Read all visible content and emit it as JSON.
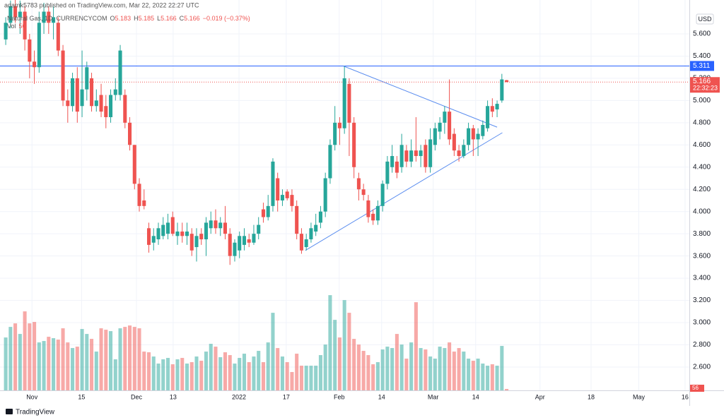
{
  "publisher": "adamk5783 published on TradingView.com, Mar 22, 2022 22:27 UTC",
  "brand": "TradingView",
  "chart_data": {
    "type": "candlestick",
    "currency": "USD",
    "legend": {
      "symbol": "Natural Gas, 1D, CURRENCYCOM",
      "labels": [
        "O",
        "H",
        "L",
        "C"
      ],
      "change": "−0.019 (−0.37%)",
      "volume_label": "Vol"
    },
    "countdown": "22:32:23",
    "up_color": "#26a69a",
    "down_color": "#ef5350",
    "grid": true,
    "xlim": [
      -1.2,
      143.3
    ],
    "xticks": [
      {
        "value": 5.5,
        "label": "Nov"
      },
      {
        "value": 15.9,
        "label": "15"
      },
      {
        "value": 27.4,
        "label": "Dec"
      },
      {
        "value": 35.1,
        "label": "13"
      },
      {
        "value": 48.9,
        "label": "2022"
      },
      {
        "value": 58.8,
        "label": "17"
      },
      {
        "value": 69.9,
        "label": "Feb"
      },
      {
        "value": 78.8,
        "label": "14"
      },
      {
        "value": 89.6,
        "label": "Mar"
      },
      {
        "value": 98.5,
        "label": "14"
      },
      {
        "value": 112,
        "label": "Apr"
      },
      {
        "value": 122.7,
        "label": "18"
      },
      {
        "value": 132.7,
        "label": "May"
      },
      {
        "value": 142.4,
        "label": "16"
      }
    ],
    "ylim": [
      2.39,
      5.905
    ],
    "yticks": [
      {
        "value": 2.6,
        "label": "2.600"
      },
      {
        "value": 2.8,
        "label": "2.800"
      },
      {
        "value": 3.0,
        "label": "3.000"
      },
      {
        "value": 3.2,
        "label": "3.200"
      },
      {
        "value": 3.4,
        "label": "3.400"
      },
      {
        "value": 3.6,
        "label": "3.600"
      },
      {
        "value": 3.8,
        "label": "3.800"
      },
      {
        "value": 4.0,
        "label": "4.000"
      },
      {
        "value": 4.2,
        "label": "4.200"
      },
      {
        "value": 4.4,
        "label": "4.400"
      },
      {
        "value": 4.6,
        "label": "4.600"
      },
      {
        "value": 4.8,
        "label": "4.800"
      },
      {
        "value": 5.0,
        "label": "5.000"
      },
      {
        "value": 5.2,
        "label": "5.200"
      },
      {
        "value": 5.4,
        "label": "5.400"
      },
      {
        "value": 5.6,
        "label": "5.600"
      }
    ],
    "y2lim": [
      0,
      15500
    ],
    "hline": {
      "value": 5.311,
      "color": "#2962ff"
    },
    "trendlines": [
      {
        "x": [
          70.8,
          103
        ],
        "y": [
          5.31,
          4.76
        ],
        "color": "#5b8def"
      },
      {
        "x": [
          62.8,
          104.1
        ],
        "y": [
          3.65,
          4.71
        ],
        "color": "#5b8def"
      }
    ],
    "open": [
      5.55,
      5.7,
      5.85,
      5.75,
      5.8,
      5.55,
      5.35,
      5.3,
      5.7,
      5.8,
      5.7,
      5.7,
      5.45,
      5.0,
      4.95,
      5.2,
      4.95,
      5.1,
      5.2,
      4.95,
      5.05,
      4.95,
      4.85,
      5.05,
      5.05,
      5.05,
      4.8,
      4.6,
      4.25,
      4.1,
      3.85,
      3.72,
      3.75,
      3.78,
      3.8,
      3.95,
      3.78,
      3.82,
      3.78,
      3.8,
      3.68,
      3.8,
      3.75,
      3.85,
      3.92,
      3.85,
      3.9,
      3.8,
      3.6,
      3.65,
      3.7,
      3.75,
      3.72,
      3.8,
      4.02,
      3.95,
      4.05,
      4.3,
      4.1,
      4.18,
      4.15,
      4.05,
      3.8,
      3.68,
      3.75,
      3.82,
      3.9,
      4.0,
      4.3,
      4.6,
      4.8,
      4.75,
      5.15,
      4.8,
      4.3,
      4.2,
      4.1,
      3.98,
      3.92,
      4.05,
      4.25,
      4.4,
      4.45,
      4.4,
      4.55,
      4.45,
      4.55,
      4.5,
      4.6,
      4.4,
      4.6,
      4.72,
      4.8,
      4.9,
      4.7,
      4.55,
      4.5,
      4.6,
      4.75,
      4.65,
      4.68,
      4.75,
      4.95,
      4.92,
      5.0,
      5.183
    ],
    "high": [
      5.75,
      5.9,
      5.95,
      5.9,
      5.85,
      5.6,
      5.45,
      5.8,
      5.88,
      5.85,
      5.85,
      5.75,
      5.5,
      5.1,
      5.25,
      5.3,
      5.45,
      5.35,
      5.25,
      5.1,
      5.15,
      5.05,
      5.1,
      5.2,
      5.5,
      5.1,
      4.85,
      4.6,
      4.3,
      4.2,
      3.9,
      3.85,
      3.9,
      3.95,
      3.98,
      4.0,
      3.9,
      3.9,
      3.9,
      3.85,
      3.85,
      3.85,
      3.95,
      4.0,
      4.02,
      3.95,
      4.05,
      3.85,
      3.75,
      3.82,
      3.85,
      3.8,
      3.88,
      3.95,
      4.08,
      4.15,
      4.48,
      4.35,
      4.2,
      4.2,
      4.2,
      4.1,
      3.85,
      3.8,
      3.9,
      3.98,
      4.05,
      4.35,
      4.65,
      4.95,
      4.85,
      5.31,
      5.2,
      4.85,
      4.35,
      4.25,
      4.15,
      4.02,
      4.1,
      4.28,
      4.5,
      4.6,
      4.5,
      4.7,
      4.6,
      4.65,
      4.85,
      4.6,
      4.65,
      4.75,
      4.8,
      4.85,
      4.95,
      5.19,
      4.75,
      4.6,
      4.65,
      4.8,
      4.78,
      4.75,
      4.82,
      5.0,
      5.02,
      5.0,
      5.24,
      5.185
    ],
    "low": [
      5.5,
      5.65,
      5.7,
      5.6,
      5.45,
      5.2,
      5.15,
      5.25,
      5.6,
      5.6,
      5.55,
      5.4,
      4.95,
      4.8,
      4.9,
      4.8,
      4.85,
      5.0,
      4.9,
      4.9,
      4.85,
      4.75,
      4.8,
      5.0,
      5.0,
      4.75,
      4.55,
      4.2,
      4.0,
      4.02,
      3.63,
      3.65,
      3.7,
      3.75,
      3.75,
      3.78,
      3.7,
      3.72,
      3.7,
      3.6,
      3.55,
      3.7,
      3.6,
      3.8,
      3.8,
      3.78,
      3.75,
      3.52,
      3.55,
      3.58,
      3.65,
      3.68,
      3.7,
      3.75,
      3.9,
      3.92,
      4.0,
      4.0,
      4.05,
      4.1,
      4.0,
      3.75,
      3.62,
      3.65,
      3.72,
      3.78,
      3.85,
      3.95,
      4.25,
      4.55,
      4.6,
      4.7,
      4.5,
      4.3,
      4.1,
      4.1,
      3.9,
      3.88,
      3.88,
      4.0,
      4.2,
      4.35,
      4.3,
      4.35,
      4.4,
      4.4,
      4.45,
      4.4,
      4.35,
      4.35,
      4.55,
      4.65,
      4.7,
      4.6,
      4.5,
      4.45,
      4.48,
      4.55,
      4.5,
      4.5,
      4.65,
      4.72,
      4.85,
      4.85,
      4.98,
      5.166
    ],
    "close": [
      5.7,
      5.85,
      5.75,
      5.8,
      5.55,
      5.35,
      5.3,
      5.7,
      5.8,
      5.7,
      5.75,
      5.45,
      5.0,
      4.95,
      5.2,
      4.9,
      5.1,
      5.3,
      4.95,
      5.0,
      4.9,
      4.85,
      5.05,
      5.1,
      5.45,
      4.8,
      4.6,
      4.25,
      4.05,
      4.05,
      3.7,
      3.78,
      3.85,
      3.88,
      3.9,
      3.8,
      3.82,
      3.78,
      3.82,
      3.65,
      3.78,
      3.75,
      3.9,
      3.92,
      3.85,
      3.9,
      3.8,
      3.6,
      3.72,
      3.78,
      3.78,
      3.72,
      3.8,
      3.88,
      3.95,
      4.05,
      4.45,
      4.1,
      4.15,
      4.12,
      4.05,
      3.8,
      3.65,
      3.75,
      3.85,
      3.88,
      4.0,
      4.3,
      4.6,
      4.8,
      4.75,
      5.2,
      4.8,
      4.4,
      4.2,
      4.15,
      3.95,
      3.92,
      4.05,
      4.25,
      4.45,
      4.5,
      4.35,
      4.6,
      4.45,
      4.55,
      4.5,
      4.55,
      4.4,
      4.65,
      4.75,
      4.8,
      4.9,
      4.65,
      4.55,
      4.5,
      4.6,
      4.75,
      4.65,
      4.7,
      4.78,
      4.95,
      4.9,
      4.97,
      5.19,
      5.166
    ],
    "volume": [
      2100,
      2520,
      2660,
      2240,
      3136,
      2660,
      2716,
      1904,
      1960,
      2128,
      2072,
      2016,
      2464,
      1904,
      1680,
      1736,
      2436,
      2240,
      2044,
      1540,
      2464,
      2408,
      2352,
      1232,
      2464,
      2520,
      2576,
      2520,
      2464,
      1540,
      1512,
      1344,
      1064,
      1232,
      1288,
      1036,
      1232,
      1288,
      1064,
      1120,
      1344,
      1176,
      1540,
      1848,
      1736,
      1316,
      1512,
      1400,
      1064,
      1288,
      1456,
      1120,
      1344,
      1568,
      1120,
      1904,
      3080,
      1680,
      1344,
      1120,
      728,
      1456,
      980,
      980,
      980,
      980,
      1400,
      1820,
      3780,
      2800,
      2100,
      3584,
      3080,
      2044,
      1820,
      1568,
      1400,
      1036,
      1120,
      1624,
      1736,
      1680,
      2240,
      1820,
      1260,
      1904,
      3500,
      1680,
      1624,
      1344,
      1260,
      1736,
      1680,
      1904,
      1540,
      1680,
      1540,
      1260,
      1176,
      1260,
      1064,
      980,
      1036,
      980,
      1764,
      56
    ]
  }
}
